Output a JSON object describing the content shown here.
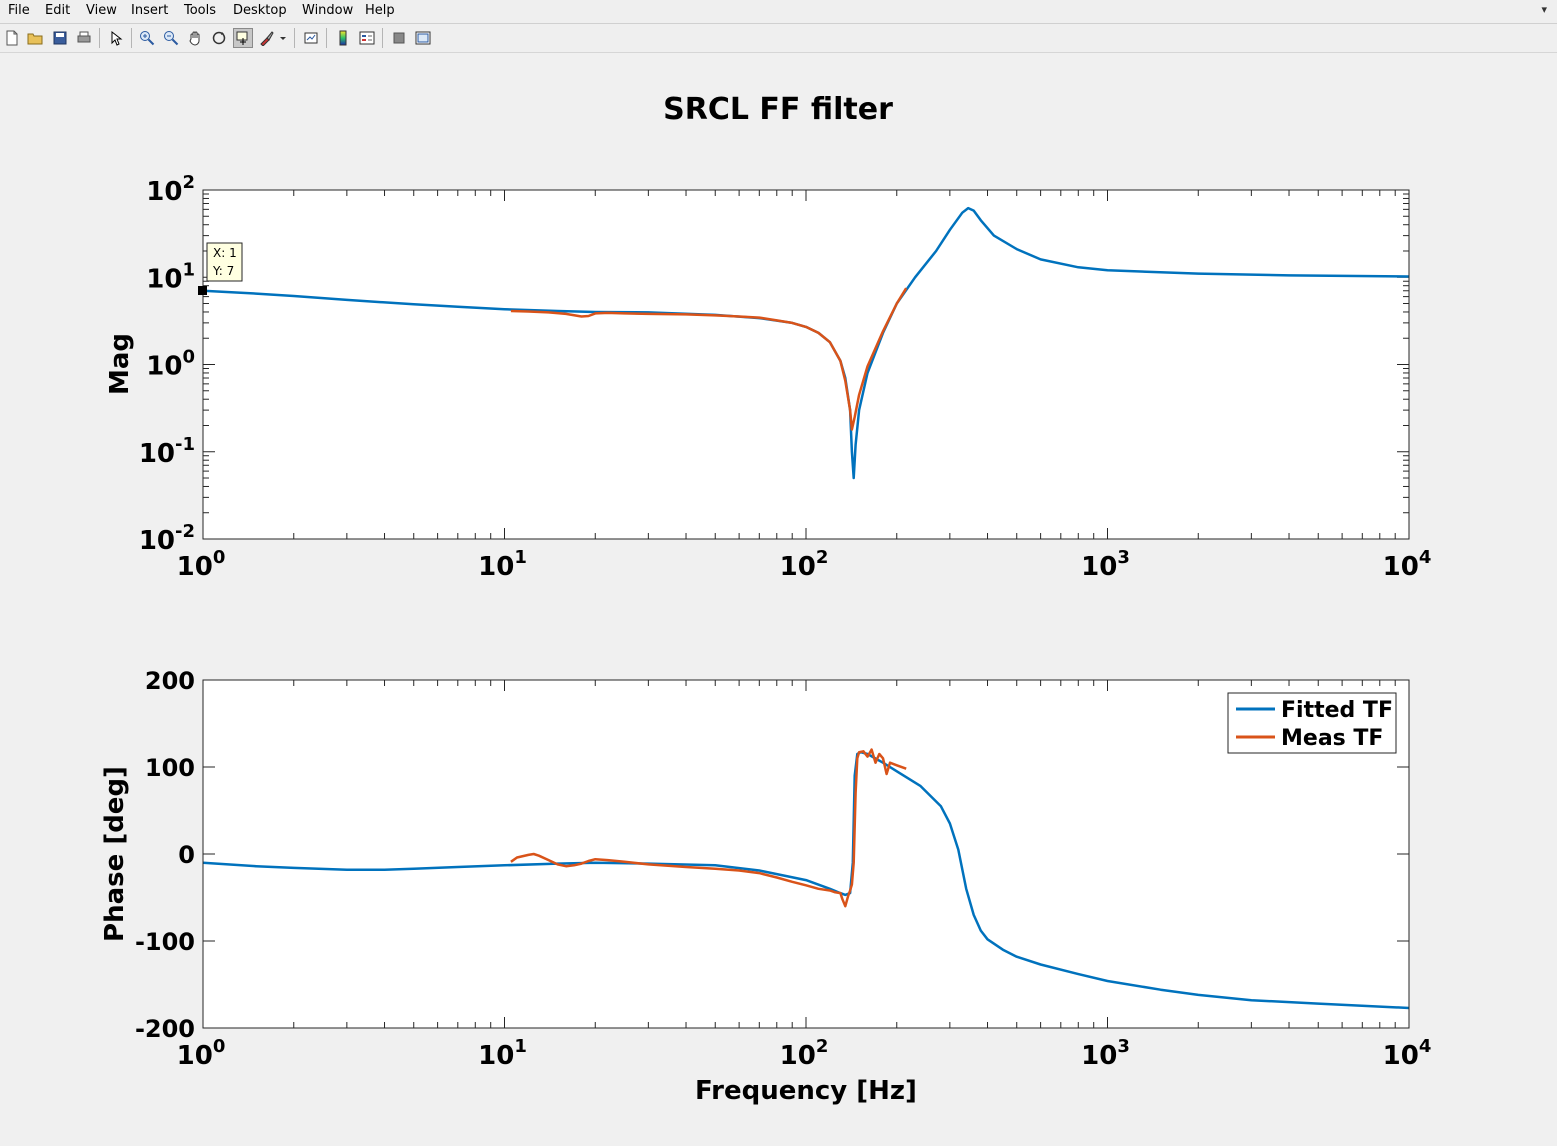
{
  "menu": {
    "items": [
      {
        "label": "File"
      },
      {
        "label": "Edit"
      },
      {
        "label": "View"
      },
      {
        "label": "Insert"
      },
      {
        "label": "Tools"
      },
      {
        "label": "Desktop"
      },
      {
        "label": "Window"
      },
      {
        "label": "Help"
      }
    ],
    "arrow": "▾"
  },
  "toolbar": {
    "icons": [
      "new-figure-icon",
      "open-file-icon",
      "save-icon",
      "print-icon",
      "pointer-icon",
      "zoom-in-icon",
      "zoom-out-icon",
      "pan-icon",
      "rotate-3d-icon",
      "data-cursor-icon",
      "brush-icon",
      "link-plot-icon",
      "colorbar-icon",
      "legend-icon",
      "hide-plot-tools-icon",
      "show-plot-tools-icon"
    ]
  },
  "figure": {
    "title": "SRCL FF filter"
  },
  "colors": {
    "fitted": "#0072bd",
    "meas": "#d95319"
  },
  "datatip": {
    "x_text": "X: 1",
    "y_text": "Y: 7"
  },
  "chart_data": [
    {
      "type": "line",
      "name": "magnitude",
      "title": "",
      "xlabel": "",
      "ylabel": "Mag",
      "xscale": "log",
      "yscale": "log",
      "xlim": [
        1,
        10000
      ],
      "ylim": [
        0.01,
        100
      ],
      "xticks": [
        {
          "base": "10",
          "exp": "0"
        },
        {
          "base": "10",
          "exp": "1"
        },
        {
          "base": "10",
          "exp": "2"
        },
        {
          "base": "10",
          "exp": "3"
        },
        {
          "base": "10",
          "exp": "4"
        }
      ],
      "yticks": [
        {
          "base": "10",
          "exp": "-2"
        },
        {
          "base": "10",
          "exp": "-1"
        },
        {
          "base": "10",
          "exp": "0"
        },
        {
          "base": "10",
          "exp": "1"
        },
        {
          "base": "10",
          "exp": "2"
        }
      ],
      "series": [
        {
          "name": "Fitted TF",
          "color": "#0072bd",
          "x": [
            1,
            1.5,
            2,
            3,
            5,
            7,
            10,
            15,
            20,
            30,
            50,
            70,
            90,
            100,
            110,
            120,
            130,
            135,
            140,
            142,
            144,
            146,
            150,
            160,
            180,
            200,
            230,
            270,
            300,
            330,
            345,
            360,
            380,
            420,
            500,
            600,
            800,
            1000,
            2000,
            4000,
            10000
          ],
          "y": [
            7,
            6.5,
            6.1,
            5.5,
            4.9,
            4.6,
            4.3,
            4.1,
            4,
            3.95,
            3.7,
            3.4,
            3.0,
            2.7,
            2.3,
            1.8,
            1.1,
            0.7,
            0.3,
            0.1,
            0.05,
            0.12,
            0.3,
            0.8,
            2.3,
            5,
            10,
            20,
            35,
            55,
            62,
            58,
            45,
            30,
            21,
            16,
            13,
            12,
            11,
            10.5,
            10.2
          ]
        },
        {
          "name": "Meas TF",
          "color": "#d95319",
          "x": [
            10.5,
            12,
            14,
            16,
            18,
            19,
            20,
            22,
            25,
            30,
            40,
            50,
            60,
            70,
            80,
            90,
            100,
            110,
            120,
            130,
            135,
            140,
            142,
            145,
            150,
            160,
            180,
            200,
            215
          ],
          "y": [
            4.1,
            4.05,
            3.95,
            3.8,
            3.55,
            3.6,
            3.85,
            3.9,
            3.85,
            3.8,
            3.75,
            3.65,
            3.55,
            3.45,
            3.2,
            3.0,
            2.7,
            2.3,
            1.8,
            1.1,
            0.65,
            0.3,
            0.18,
            0.25,
            0.45,
            0.95,
            2.4,
            5,
            7.5
          ]
        }
      ]
    },
    {
      "type": "line",
      "name": "phase",
      "title": "",
      "xlabel": "Frequency [Hz]",
      "ylabel": "Phase [deg]",
      "xscale": "log",
      "yscale": "linear",
      "xlim": [
        1,
        10000
      ],
      "ylim": [
        -200,
        200
      ],
      "xticks": [
        {
          "base": "10",
          "exp": "0"
        },
        {
          "base": "10",
          "exp": "1"
        },
        {
          "base": "10",
          "exp": "2"
        },
        {
          "base": "10",
          "exp": "3"
        },
        {
          "base": "10",
          "exp": "4"
        }
      ],
      "yticks": [
        "-200",
        "-100",
        "0",
        "100",
        "200"
      ],
      "legend": {
        "position": "top-right",
        "entries": [
          "Fitted TF",
          "Meas TF"
        ]
      },
      "series": [
        {
          "name": "Fitted TF",
          "color": "#0072bd",
          "x": [
            1,
            1.5,
            2,
            3,
            4,
            5,
            7,
            10,
            15,
            20,
            30,
            50,
            70,
            100,
            120,
            130,
            135,
            140,
            143,
            145,
            148,
            152,
            160,
            180,
            200,
            240,
            280,
            300,
            320,
            340,
            360,
            380,
            400,
            450,
            500,
            600,
            800,
            1000,
            1500,
            2000,
            3000,
            5000,
            10000
          ],
          "y": [
            -10,
            -14,
            -16,
            -18,
            -18,
            -17,
            -15,
            -13,
            -11,
            -10,
            -11,
            -13,
            -19,
            -30,
            -40,
            -45,
            -47,
            -45,
            -10,
            90,
            115,
            117,
            115,
            105,
            95,
            78,
            55,
            35,
            5,
            -40,
            -70,
            -88,
            -98,
            -110,
            -118,
            -127,
            -138,
            -146,
            -156,
            -162,
            -168,
            -172,
            -177
          ]
        },
        {
          "name": "Meas TF",
          "color": "#d95319",
          "x": [
            10.5,
            11,
            12,
            12.5,
            13,
            14,
            15,
            16,
            17,
            18,
            19,
            20,
            22,
            25,
            30,
            40,
            50,
            60,
            70,
            80,
            90,
            100,
            110,
            120,
            125,
            130,
            132,
            135,
            138,
            140,
            142,
            144,
            146,
            148,
            150,
            155,
            160,
            165,
            170,
            175,
            180,
            185,
            190,
            200,
            215
          ],
          "y": [
            -9,
            -4,
            -1,
            0,
            -2,
            -7,
            -12,
            -14,
            -13,
            -11,
            -8,
            -6,
            -7,
            -9,
            -12,
            -15,
            -17,
            -19,
            -22,
            -27,
            -32,
            -36,
            -40,
            -42,
            -44,
            -45,
            -52,
            -60,
            -48,
            -42,
            -35,
            -10,
            70,
            110,
            117,
            118,
            112,
            120,
            105,
            115,
            110,
            92,
            105,
            102,
            98
          ]
        }
      ]
    }
  ]
}
